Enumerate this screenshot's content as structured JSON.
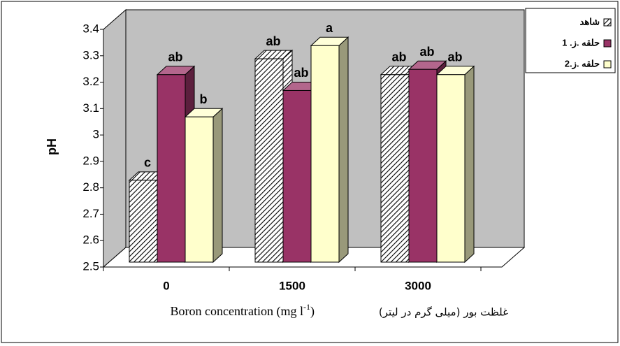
{
  "chart_data": {
    "type": "bar3d",
    "y_label": "pH",
    "x_label": {
      "persian": "غلظت بور (میلی گرم در لیتر)",
      "english": "Boron concentration (mg l",
      "superscript": "-1",
      "close": ")"
    },
    "categories": [
      "0",
      "1500",
      "3000"
    ],
    "series": [
      {
        "name": "شاهد",
        "color": "#000000",
        "pattern": "hatch",
        "values": [
          2.81,
          3.27,
          3.21
        ],
        "letters": [
          "c",
          "ab",
          "ab"
        ]
      },
      {
        "name": "حلقه .ز. 1",
        "color": "#993366",
        "values": [
          3.21,
          3.15,
          3.23
        ],
        "letters": [
          "ab",
          "ab",
          "ab"
        ]
      },
      {
        "name": "حلقه .ز.2",
        "color": "#FFFFCC",
        "values": [
          3.05,
          3.32,
          3.21
        ],
        "letters": [
          "b",
          "a",
          "ab"
        ]
      }
    ],
    "ylim": [
      2.5,
      3.4
    ],
    "yticks": [
      2.5,
      2.6,
      2.7,
      2.8,
      2.9,
      3,
      3.1,
      3.2,
      3.3,
      3.4
    ],
    "legend": "top-right",
    "wall_color": "#C0C0C0"
  }
}
